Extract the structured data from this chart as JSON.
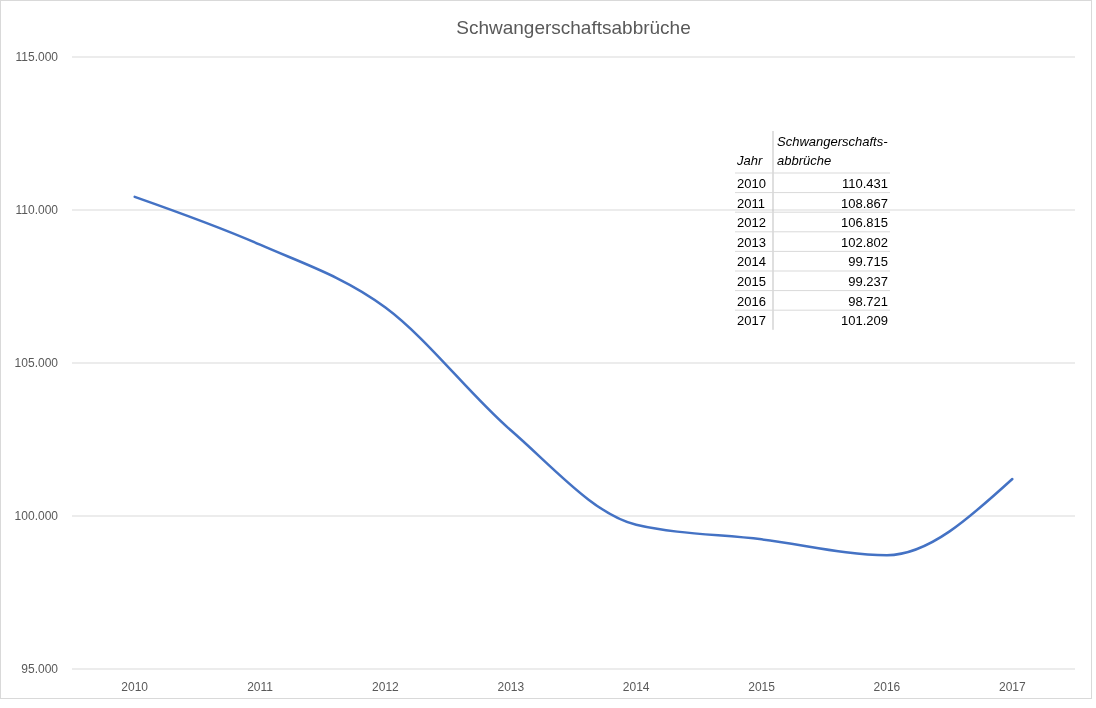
{
  "chart_data": {
    "type": "line",
    "title": "Schwangerschaftsabbrüche",
    "categories": [
      "2010",
      "2011",
      "2012",
      "2013",
      "2014",
      "2015",
      "2016",
      "2017"
    ],
    "series": [
      {
        "color": "#4472c4",
        "values": [
          110431,
          108867,
          106815,
          102802,
          99715,
          99237,
          98721,
          101209
        ]
      }
    ],
    "value_labels": [
      "110.431",
      "108.867",
      "106.815",
      "102.802",
      "99.715",
      "99.237",
      "98.721",
      "101.209"
    ],
    "annotations": [
      "Jahr",
      "Schwangerschafts-abbrüche"
    ],
    "ylim": [
      95000,
      115000
    ],
    "yticks": [
      {
        "value": 95000,
        "label": "95.000"
      },
      {
        "value": 100000,
        "label": "100.000"
      },
      {
        "value": 105000,
        "label": "105.000"
      },
      {
        "value": 110000,
        "label": "110.000"
      },
      {
        "value": 115000,
        "label": "115.000"
      }
    ],
    "grid": "y",
    "marker": "none",
    "line_style": "solid"
  }
}
